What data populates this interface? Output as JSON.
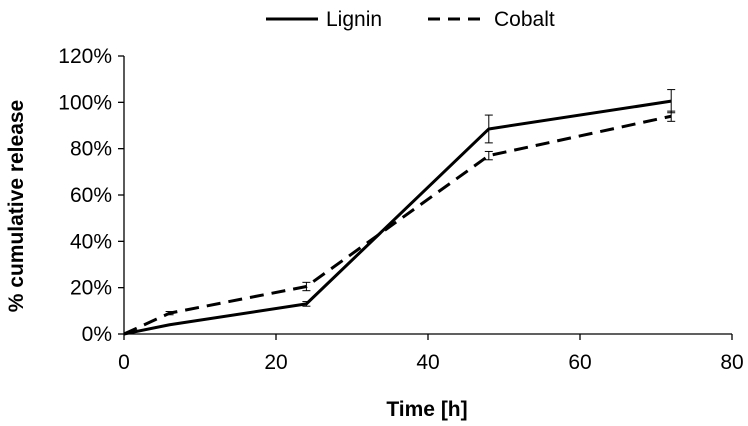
{
  "chart_data": {
    "type": "line",
    "title": "",
    "xlabel": "Time [h]",
    "ylabel": "% cumulative release",
    "xlim": [
      0,
      80
    ],
    "ylim": [
      0,
      120
    ],
    "xticks": [
      0,
      20,
      40,
      60,
      80
    ],
    "yticks": [
      0,
      20,
      40,
      60,
      80,
      100,
      120
    ],
    "ytick_suffix": "%",
    "grid": false,
    "legend_position": "top",
    "series": [
      {
        "name": "Lignin",
        "line_style": "solid",
        "color": "#000000",
        "x": [
          0,
          6,
          24,
          48,
          72
        ],
        "y": [
          0,
          4,
          13,
          88.5,
          100.5
        ],
        "error": [
          0,
          0,
          1,
          6,
          5
        ]
      },
      {
        "name": "Cobalt",
        "line_style": "dashed",
        "color": "#000000",
        "x": [
          0,
          6,
          24,
          48,
          72
        ],
        "y": [
          0,
          9,
          20.5,
          77,
          94
        ],
        "error": [
          0,
          0.7,
          1.8,
          1.8,
          2.2
        ]
      }
    ]
  }
}
